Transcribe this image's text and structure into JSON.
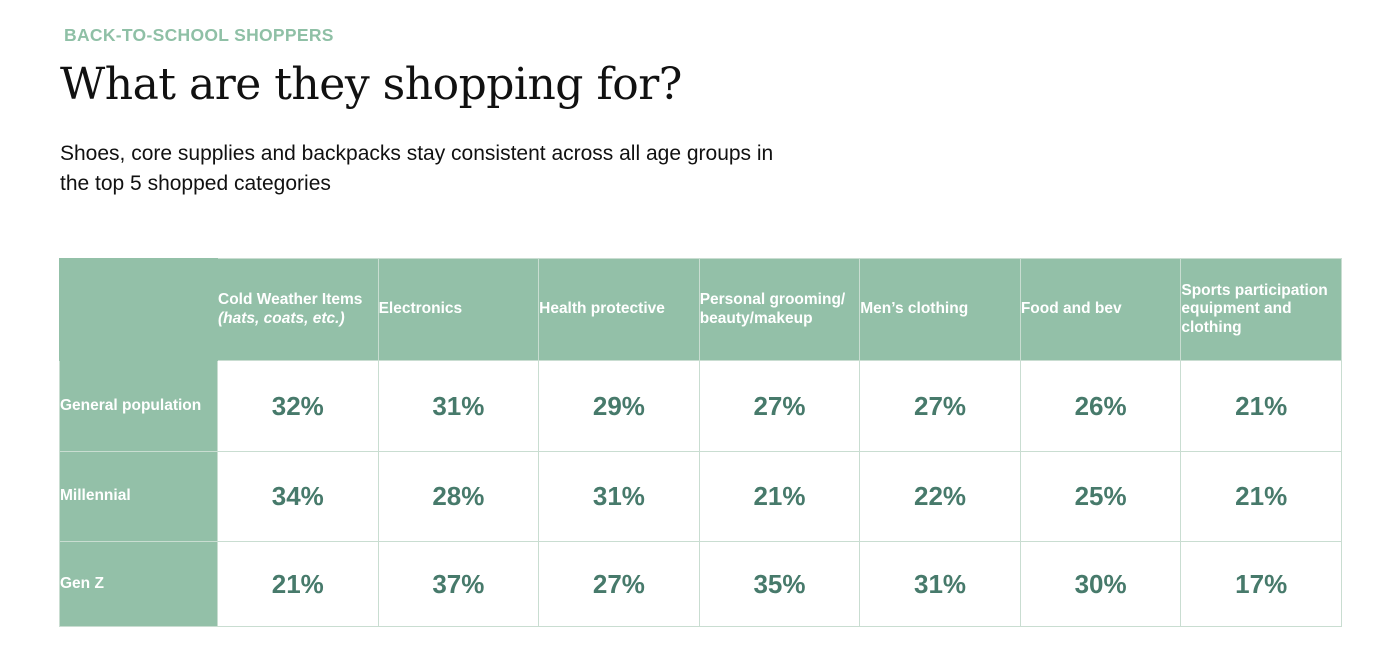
{
  "eyebrow": "BACK-TO-SCHOOL SHOPPERS",
  "title": "What are they shopping for?",
  "subtitle": "Shoes, core supplies and backpacks stay consistent across all age groups in the top 5 shopped categories",
  "colors": {
    "accent_green": "#93c0a8",
    "eyebrow_green": "#8fc0a6",
    "value_text": "#477a6b",
    "grid_line": "#c9ddd1"
  },
  "chart_data": {
    "type": "table",
    "unit": "%",
    "columns": [
      {
        "label": "Cold Weather Items ",
        "label_italic": "(hats, coats, etc.)"
      },
      {
        "label": "Electronics"
      },
      {
        "label": "Health protective"
      },
      {
        "label": "Personal grooming/ beauty/makeup"
      },
      {
        "label": "Men’s clothing"
      },
      {
        "label": "Food and bev"
      },
      {
        "label": "Sports participation equipment and clothing"
      }
    ],
    "rows": [
      {
        "label": "General population",
        "values": [
          32,
          31,
          29,
          27,
          27,
          26,
          21
        ]
      },
      {
        "label": "Millennial",
        "values": [
          34,
          28,
          31,
          21,
          22,
          25,
          21
        ]
      },
      {
        "label": "Gen Z",
        "values": [
          21,
          37,
          27,
          35,
          31,
          30,
          17
        ]
      }
    ]
  }
}
